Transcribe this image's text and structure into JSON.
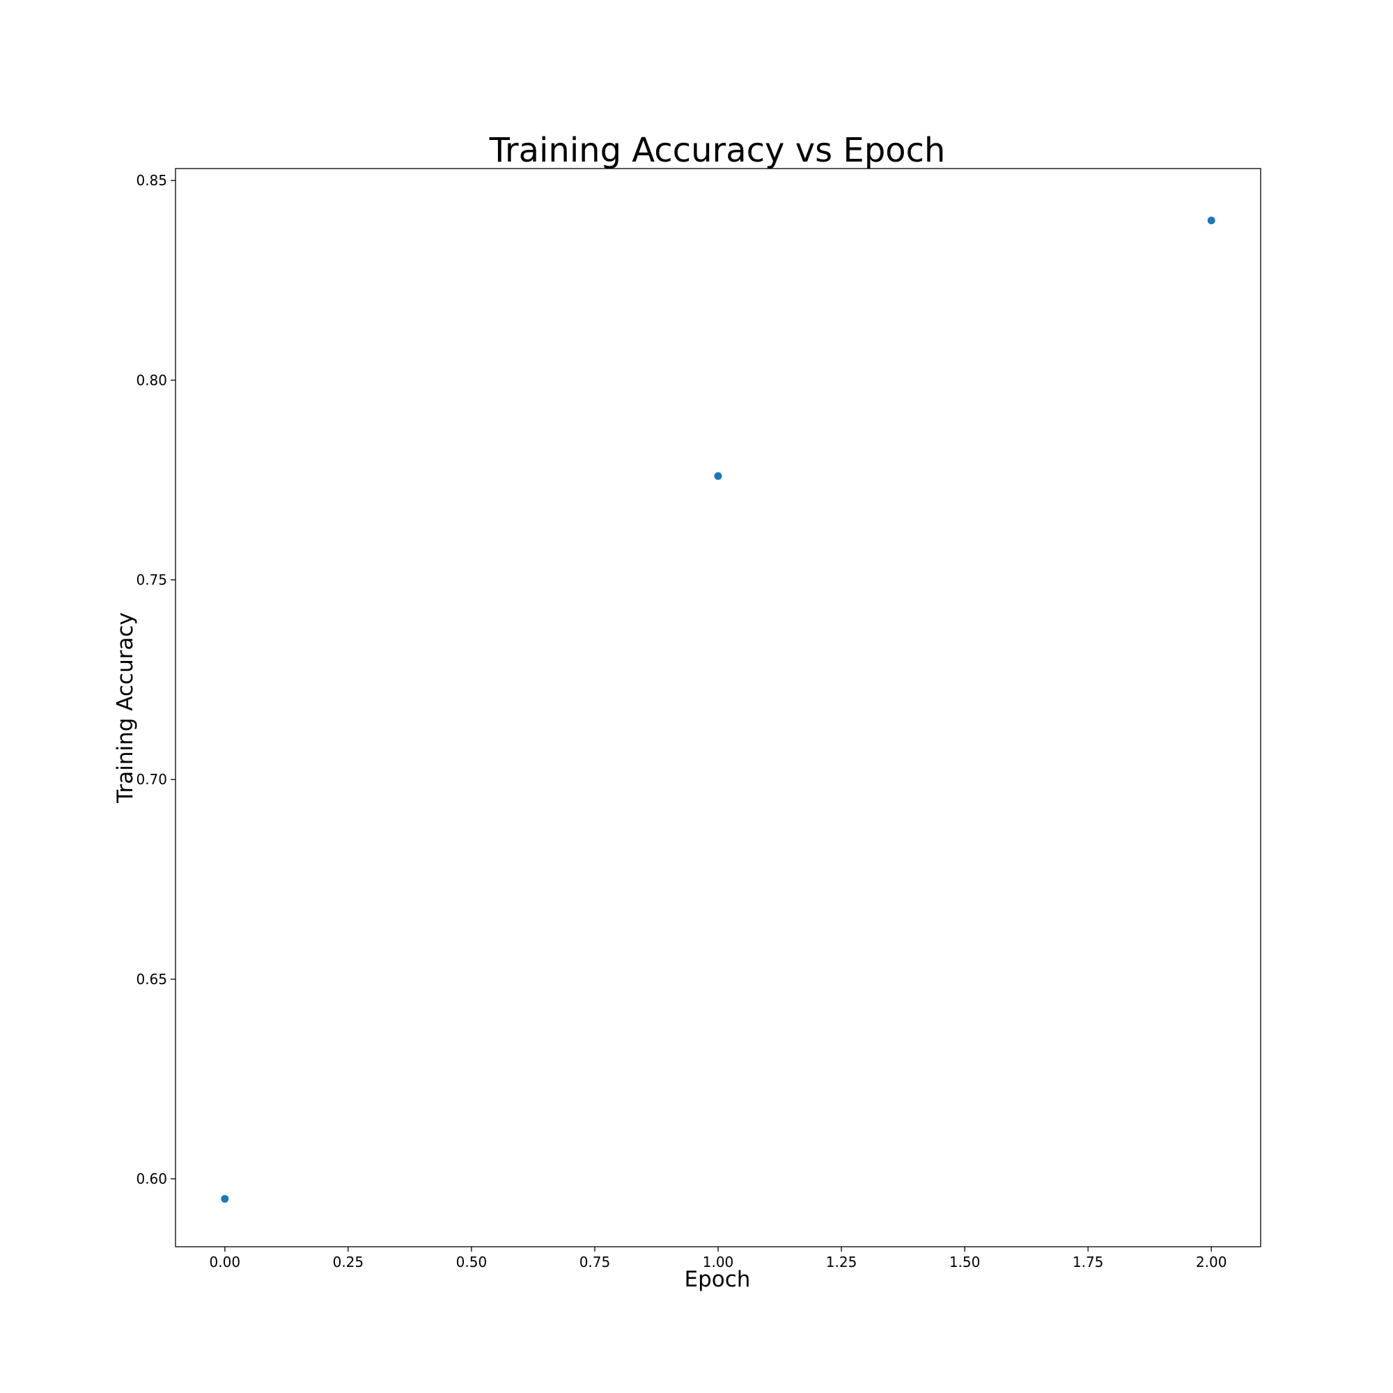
{
  "chart_data": {
    "type": "scatter",
    "title": "Training Accuracy vs Epoch",
    "xlabel": "Epoch",
    "ylabel": "Training Accuracy",
    "x": [
      0,
      1,
      2
    ],
    "y": [
      0.595,
      0.776,
      0.84
    ],
    "xlim": [
      -0.1,
      2.1
    ],
    "ylim": [
      0.583,
      0.853
    ],
    "xticks": [
      "0.00",
      "0.25",
      "0.50",
      "0.75",
      "1.00",
      "1.25",
      "1.50",
      "1.75",
      "2.00"
    ],
    "yticks": [
      "0.60",
      "0.65",
      "0.70",
      "0.75",
      "0.80",
      "0.85"
    ],
    "grid": false,
    "legend": "none",
    "color": "#1f77b4"
  }
}
